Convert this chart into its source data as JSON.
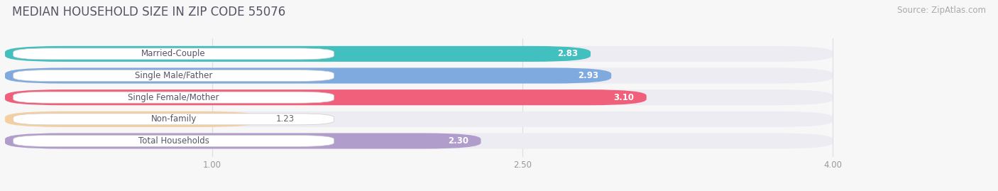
{
  "title": "MEDIAN HOUSEHOLD SIZE IN ZIP CODE 55076",
  "source": "Source: ZipAtlas.com",
  "categories": [
    "Married-Couple",
    "Single Male/Father",
    "Single Female/Mother",
    "Non-family",
    "Total Households"
  ],
  "values": [
    2.83,
    2.93,
    3.1,
    1.23,
    2.3
  ],
  "bar_colors": [
    "#42bfbf",
    "#7eaadf",
    "#f0607a",
    "#f5cfa0",
    "#b09dcc"
  ],
  "xlim_min": 0.0,
  "xlim_max": 4.22,
  "data_min": 0.0,
  "data_max": 4.0,
  "xticks": [
    1.0,
    2.5,
    4.0
  ],
  "bg_color": "#f7f7f7",
  "row_bg_color": "#ececf2",
  "label_box_color": "#ffffff",
  "title_color": "#555566",
  "source_color": "#aaaaaa",
  "title_fontsize": 12,
  "source_fontsize": 8.5,
  "label_fontsize": 8.5,
  "value_fontsize": 8.5,
  "tick_fontsize": 8.5
}
